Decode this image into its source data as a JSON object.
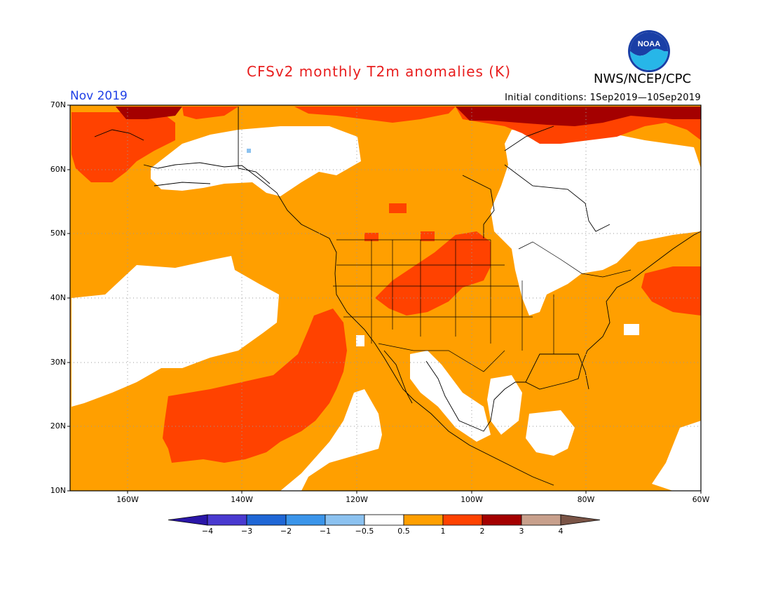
{
  "title": "CFSv2 monthly T2m anomalies (K)",
  "org": "NWS/NCEP/CPC",
  "logo_text": "NOAA",
  "month": "Nov 2019",
  "initial_conditions": "Initial conditions: 1Sep2019—10Sep2019",
  "lat_labels": [
    "70N",
    "60N",
    "50N",
    "40N",
    "30N",
    "20N",
    "10N"
  ],
  "lon_labels": [
    "160W",
    "140W",
    "120W",
    "100W",
    "80W",
    "60W"
  ],
  "colorbar": {
    "labels": [
      "−4",
      "−3",
      "−2",
      "−1",
      "−0.5",
      "0.5",
      "1",
      "2",
      "3",
      "4"
    ],
    "colors": [
      "#2a16a8",
      "#4a3ad0",
      "#1f67d6",
      "#3b95ea",
      "#8cc2f0",
      "#ffffff",
      "#ff9f00",
      "#ff4200",
      "#a40000",
      "#c8a08c",
      "#7a5446"
    ]
  },
  "colors": {
    "title": "#e81e1e",
    "month": "#1f3fe6",
    "ocean_base": "#ff9f00",
    "warm": "#ff4200",
    "hot": "#a40000"
  }
}
